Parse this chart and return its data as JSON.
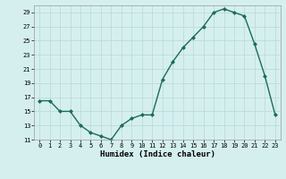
{
  "x": [
    0,
    1,
    2,
    3,
    4,
    5,
    6,
    7,
    8,
    9,
    10,
    11,
    12,
    13,
    14,
    15,
    16,
    17,
    18,
    19,
    20,
    21,
    22,
    23
  ],
  "y": [
    16.5,
    16.5,
    15,
    15,
    13,
    12,
    11.5,
    11,
    13,
    14,
    14.5,
    14.5,
    19.5,
    22,
    24,
    25.5,
    27,
    29,
    29.5,
    29,
    28.5,
    24.5,
    20,
    14.5
  ],
  "line_color": "#1c6b58",
  "marker_color": "#1c6b58",
  "bg_color": "#d5efef",
  "grid_color": "#b8d8d8",
  "xlabel": "Humidex (Indice chaleur)",
  "ylim": [
    11,
    30
  ],
  "xlim": [
    -0.5,
    23.5
  ],
  "yticks": [
    11,
    13,
    15,
    17,
    19,
    21,
    23,
    25,
    27,
    29
  ],
  "xticks": [
    0,
    1,
    2,
    3,
    4,
    5,
    6,
    7,
    8,
    9,
    10,
    11,
    12,
    13,
    14,
    15,
    16,
    17,
    18,
    19,
    20,
    21,
    22,
    23
  ]
}
